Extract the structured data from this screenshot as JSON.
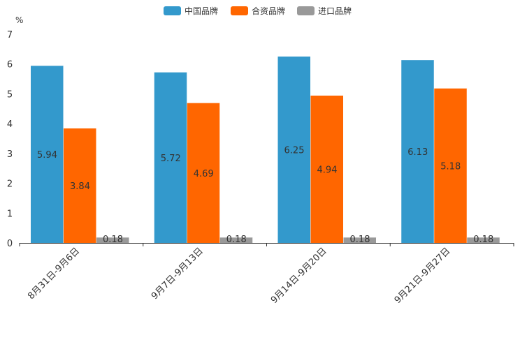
{
  "chart_data": {
    "type": "bar",
    "title": "",
    "xlabel": "",
    "ylabel": "%",
    "ylim": [
      0,
      7
    ],
    "yticks": [
      0,
      1,
      2,
      3,
      4,
      5,
      6,
      7
    ],
    "categories": [
      "8月31日-9月6日",
      "9月7日-9月13日",
      "9月14日-9月20日",
      "9月21日-9月27日"
    ],
    "series": [
      {
        "name": "中国品牌",
        "color": "#3399cc",
        "values": [
          5.94,
          5.72,
          6.25,
          6.13
        ]
      },
      {
        "name": "合资品牌",
        "color": "#ff6600",
        "values": [
          3.84,
          4.69,
          4.94,
          5.18
        ]
      },
      {
        "name": "进口品牌",
        "color": "#999999",
        "values": [
          0.18,
          0.18,
          0.18,
          0.18
        ]
      }
    ],
    "value_labels": [
      [
        "5.94",
        "5.72",
        "6.25",
        "6.13"
      ],
      [
        "3.84",
        "4.69",
        "4.94",
        "5.18"
      ],
      [
        "0.18",
        "0.18",
        "0.18",
        "0.18"
      ]
    ],
    "legend_position": "top-center",
    "grid": false
  }
}
